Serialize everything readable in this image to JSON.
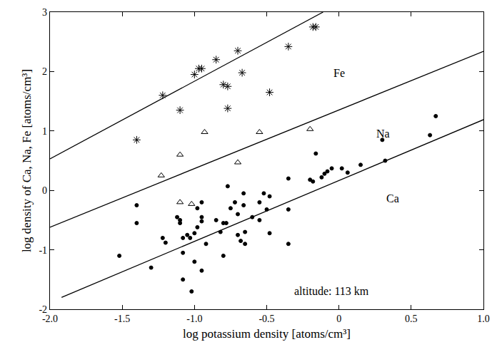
{
  "chart_data": {
    "type": "scatter",
    "x_label": "log potassium density [atoms/cm³]",
    "y_label": "log density of Ca, Na, Fe [atoms/cm³]",
    "xlim": [
      -2.0,
      1.0
    ],
    "ylim": [
      -2,
      3
    ],
    "xticks": [
      {
        "value": -2.0,
        "label": "-2.0"
      },
      {
        "value": -1.5,
        "label": "-1.5"
      },
      {
        "value": -1.0,
        "label": "-1.0"
      },
      {
        "value": -0.5,
        "label": "-0.5"
      },
      0,
      0.5,
      {
        "value": 1.0,
        "label": "1.0"
      }
    ],
    "yticks": [
      -2,
      -1,
      0,
      1,
      2,
      3
    ],
    "grid": false,
    "legend": false,
    "series": [
      {
        "name": "Fe",
        "type": "scatter",
        "marker": "asterisk",
        "color": "#000000",
        "x": [
          -1.4,
          -1.22,
          -1.1,
          -1.0,
          -0.97,
          -0.95,
          -0.85,
          -0.8,
          -0.77,
          -0.77,
          -0.7,
          -0.67,
          -0.48,
          -0.35,
          -0.18,
          -0.16
        ],
        "values": [
          0.85,
          1.6,
          1.35,
          1.95,
          2.05,
          2.05,
          2.2,
          1.78,
          1.75,
          1.38,
          2.35,
          1.98,
          1.65,
          2.42,
          2.75,
          2.75
        ]
      },
      {
        "name": "Na",
        "type": "scatter",
        "marker": "triangle",
        "color": "#000000",
        "x": [
          -1.23,
          -1.1,
          -1.1,
          -1.02,
          -0.93,
          -0.7,
          -0.55,
          -0.2
        ],
        "values": [
          0.25,
          0.6,
          -0.2,
          -0.23,
          0.98,
          0.47,
          0.98,
          1.03
        ]
      },
      {
        "name": "Ca",
        "type": "scatter",
        "marker": "dot",
        "color": "#000000",
        "x": [
          -1.52,
          -1.4,
          -1.4,
          -1.3,
          -1.22,
          -1.2,
          -1.12,
          -1.1,
          -1.1,
          -1.08,
          -1.08,
          -1.08,
          -1.05,
          -1.03,
          -1.02,
          -1.0,
          -0.98,
          -0.98,
          -1.0,
          -0.95,
          -0.95,
          -0.95,
          -0.95,
          -0.92,
          -0.85,
          -0.82,
          -0.8,
          -0.8,
          -0.78,
          -0.77,
          -0.75,
          -0.72,
          -0.7,
          -0.7,
          -0.68,
          -0.66,
          -0.66,
          -0.65,
          -0.65,
          -0.6,
          -0.55,
          -0.55,
          -0.52,
          -0.5,
          -0.48,
          -0.48,
          -0.35,
          -0.35,
          -0.35,
          -0.2,
          -0.18,
          -0.16,
          -0.12,
          -0.1,
          -0.08,
          -0.05,
          0.02,
          0.06,
          0.15,
          0.3,
          0.32,
          0.63,
          0.67
        ],
        "values": [
          -1.1,
          -0.25,
          -0.55,
          -1.3,
          -0.8,
          -0.88,
          -0.45,
          -0.5,
          -0.55,
          -0.8,
          -1.05,
          -1.5,
          -0.75,
          -0.8,
          -1.7,
          -0.72,
          -0.3,
          -0.62,
          -1.2,
          -0.2,
          -0.45,
          -0.52,
          -1.35,
          -0.9,
          -0.5,
          -0.7,
          -0.55,
          -1.1,
          -0.55,
          0.07,
          -0.3,
          -0.2,
          -0.4,
          -0.75,
          -0.85,
          -0.05,
          -0.25,
          -0.7,
          -0.9,
          -0.45,
          -0.2,
          -0.5,
          -0.05,
          -0.32,
          -0.1,
          -0.72,
          0.2,
          -0.32,
          -0.9,
          0.18,
          0.15,
          0.62,
          0.22,
          0.28,
          0.32,
          0.37,
          0.37,
          0.3,
          0.43,
          0.85,
          0.5,
          0.93,
          1.25
        ]
      },
      {
        "type": "line",
        "line_style": "solid",
        "color": "#000000",
        "x": [
          -2.0,
          -0.11
        ],
        "values": [
          0.53,
          3.0
        ]
      },
      {
        "type": "line",
        "line_style": "solid",
        "color": "#000000",
        "x": [
          -2.0,
          1.0
        ],
        "values": [
          -0.62,
          2.34
        ]
      },
      {
        "type": "line",
        "line_style": "solid",
        "color": "#000000",
        "x": [
          -1.92,
          1.0
        ],
        "values": [
          -1.8,
          1.19
        ]
      }
    ],
    "annotations": [
      {
        "text": "Fe",
        "x": -0.05,
        "y": 1.98
      },
      {
        "text": "Na",
        "x": 0.25,
        "y": 0.95
      },
      {
        "text": "Ca",
        "x": 0.32,
        "y": -0.13
      },
      {
        "text": "altitude: 113 km",
        "x": -0.32,
        "y": -1.7
      }
    ]
  }
}
